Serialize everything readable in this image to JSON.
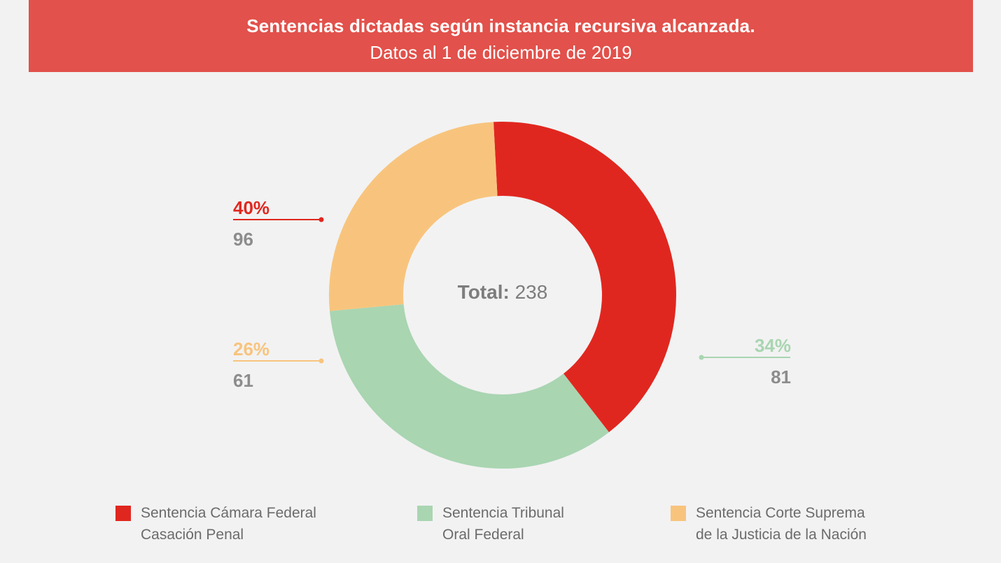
{
  "header": {
    "title": "Sentencias dictadas según instancia recursiva alcanzada.",
    "subtitle": "Datos al 1 de diciembre de 2019",
    "background": "#e2514b"
  },
  "center": {
    "total_label": "Total:",
    "total_value": "238"
  },
  "chart_data": {
    "type": "pie",
    "variant": "donut",
    "start_angle_deg": -93,
    "direction": "clockwise",
    "slices": [
      {
        "name": "Sentencia Cámara Federal Casación Penal",
        "value": 96,
        "percent_label": "40%",
        "count_label": "96",
        "color": "#e0271f"
      },
      {
        "name": "Sentencia Tribunal Oral Federal",
        "value": 81,
        "percent_label": "34%",
        "count_label": "81",
        "color": "#a9d5b1"
      },
      {
        "name": "Sentencia Corte Suprema de la Justicia de la Nación",
        "value": 61,
        "percent_label": "26%",
        "count_label": "61",
        "color": "#f8c47d"
      }
    ],
    "total": 238
  },
  "legend": [
    {
      "line1": "Sentencia Cámara Federal",
      "line2": "Casación Penal",
      "color": "#e0271f"
    },
    {
      "line1": "Sentencia Tribunal",
      "line2": "Oral Federal",
      "color": "#a9d5b1"
    },
    {
      "line1": "Sentencia Corte Suprema",
      "line2": "de la Justicia de la Nación",
      "color": "#f8c47d"
    }
  ]
}
